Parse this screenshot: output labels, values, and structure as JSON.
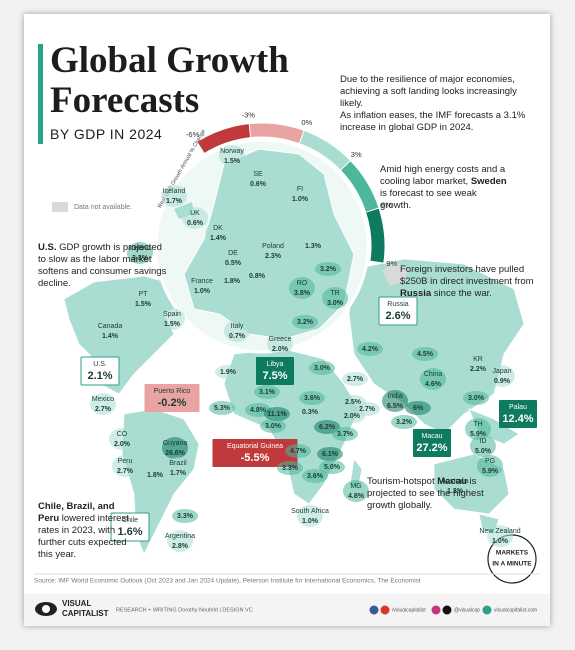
{
  "header": {
    "title_lines": [
      "Global Growth",
      "Forecasts"
    ],
    "subtitle": "BY GDP IN 2024"
  },
  "intro": [
    "Due to the resilience of major economies, achieving a soft landing looks increasingly likely.",
    "As inflation eases, the IMF forecasts a 3.1% increase in global GDP in 2024."
  ],
  "legend": {
    "label": "Real GDP Growth Annual % Change",
    "ticks": [
      {
        "value": -6,
        "label": "-6%"
      },
      {
        "value": -3,
        "label": "-3%"
      },
      {
        "value": 0,
        "label": "0%"
      },
      {
        "value": 3,
        "label": "3%"
      },
      {
        "value": 6,
        "label": "6%"
      },
      {
        "value": 9,
        "label": "9%"
      }
    ],
    "colors": [
      "#c0393b",
      "#e9a3a3",
      "#a9ddd1",
      "#4cb79b",
      "#0e7a60"
    ],
    "no_data": "Data not available."
  },
  "annotations": [
    {
      "before": "Amid high energy costs and a cooling labor market, ",
      "bold": "Sweden",
      "after": " is forecast to see weak growth."
    },
    {
      "bold": "U.S.",
      "after": " GDP growth is projected to slow as the labor market softens and consumer savings decline."
    },
    {
      "before": "Foreign investors have pulled $250B in direct investment from ",
      "bold": "Russia",
      "after": " since the war."
    },
    {
      "before": "Tourism-hotspot ",
      "bold": "Macau",
      "after": " is projected to see the highest growth globally."
    },
    {
      "bold": "Chile, Brazil, and Peru",
      "after": " lowered interest rates in 2023, with further cuts expected this year."
    }
  ],
  "countries": [
    {
      "name": "Norway",
      "value": 1.5,
      "value_label": "1.5%"
    },
    {
      "name": "Iceland",
      "value": 1.7,
      "value_label": "1.7%"
    },
    {
      "name": "SE",
      "value": 0.6,
      "value_label": "0.6%"
    },
    {
      "name": "FI",
      "value": 1.0,
      "value_label": "1.0%"
    },
    {
      "name": "UK",
      "value": 0.6,
      "value_label": "0.6%"
    },
    {
      "name": "DK",
      "value": 1.4,
      "value_label": "1.4%"
    },
    {
      "name": "Ireland",
      "value": 3.3,
      "value_label": "3.3%"
    },
    {
      "name": "DE",
      "value": 0.5,
      "value_label": "0.5%"
    },
    {
      "name": "Poland",
      "value": 2.3,
      "value_label": "2.3%"
    },
    {
      "name": null,
      "value": 1.3,
      "value_label": "1.3%"
    },
    {
      "name": "France",
      "value": 1.0,
      "value_label": "1.0%"
    },
    {
      "name": null,
      "value": 1.8,
      "value_label": "1.8%"
    },
    {
      "name": null,
      "value": 0.8,
      "value_label": "0.8%"
    },
    {
      "name": null,
      "value": 3.2,
      "value_label": "3.2%"
    },
    {
      "name": "RO",
      "value": 3.8,
      "value_label": "3.8%"
    },
    {
      "name": "PT",
      "value": 1.5,
      "value_label": "1.5%"
    },
    {
      "name": "Spain",
      "value": 1.5,
      "value_label": "1.5%"
    },
    {
      "name": null,
      "value": 3.2,
      "value_label": "3.2%"
    },
    {
      "name": "TR",
      "value": 3.0,
      "value_label": "3.0%"
    },
    {
      "name": "Italy",
      "value": 0.7,
      "value_label": "0.7%"
    },
    {
      "name": "Greece",
      "value": 2.0,
      "value_label": "2.0%"
    },
    {
      "name": "Russia",
      "value": 2.6,
      "value_label": "2.6%",
      "box": "outline"
    },
    {
      "name": "Canada",
      "value": 1.4,
      "value_label": "1.4%"
    },
    {
      "name": "U.S.",
      "value": 2.1,
      "value_label": "2.1%",
      "box": "outline"
    },
    {
      "name": "Mexico",
      "value": 2.7,
      "value_label": "2.7%"
    },
    {
      "name": "Puerto Rico",
      "value": -0.2,
      "value_label": "-0.2%",
      "box": "fill"
    },
    {
      "name": "Guyana",
      "value": 26.6,
      "value_label": "26.6%"
    },
    {
      "name": "CO",
      "value": 2.0,
      "value_label": "2.0%"
    },
    {
      "name": "Peru",
      "value": 2.7,
      "value_label": "2.7%"
    },
    {
      "name": "Brazil",
      "value": 1.7,
      "value_label": "1.7%"
    },
    {
      "name": null,
      "value": 1.8,
      "value_label": "1.8%"
    },
    {
      "name": "Chile",
      "value": 1.6,
      "value_label": "1.6%",
      "box": "outline"
    },
    {
      "name": null,
      "value": 3.3,
      "value_label": "3.3%"
    },
    {
      "name": "Argentina",
      "value": 2.8,
      "value_label": "2.8%"
    },
    {
      "name": "Libya",
      "value": 7.5,
      "value_label": "7.5%",
      "box": "fill"
    },
    {
      "name": null,
      "value": 1.9,
      "value_label": "1.9%"
    },
    {
      "name": null,
      "value": 5.3,
      "value_label": "5.3%"
    },
    {
      "name": null,
      "value": 3.1,
      "value_label": "3.1%"
    },
    {
      "name": null,
      "value": 4.8,
      "value_label": "4.8%"
    },
    {
      "name": null,
      "value": 11.1,
      "value_label": "11.1%"
    },
    {
      "name": null,
      "value": 3.0,
      "value_label": "3.0%"
    },
    {
      "name": null,
      "value": 3.6,
      "value_label": "3.6%"
    },
    {
      "name": null,
      "value": 0.3,
      "value_label": "0.3%"
    },
    {
      "name": "Equatorial Guinea",
      "value": -5.5,
      "value_label": "-5.5%",
      "box": "fill"
    },
    {
      "name": null,
      "value": 4.7,
      "value_label": "4.7%"
    },
    {
      "name": null,
      "value": 6.2,
      "value_label": "6.2%"
    },
    {
      "name": null,
      "value": 3.3,
      "value_label": "3.3%"
    },
    {
      "name": null,
      "value": 3.6,
      "value_label": "3.6%"
    },
    {
      "name": null,
      "value": 6.1,
      "value_label": "6.1%"
    },
    {
      "name": null,
      "value": 5.0,
      "value_label": "5.0%"
    },
    {
      "name": null,
      "value": 3.7,
      "value_label": "3.7%"
    },
    {
      "name": "MG",
      "value": 4.8,
      "value_label": "4.8%"
    },
    {
      "name": "South Africa",
      "value": 1.0,
      "value_label": "1.0%"
    },
    {
      "name": null,
      "value": 3.0,
      "value_label": "3.0%"
    },
    {
      "name": null,
      "value": 2.7,
      "value_label": "2.7%"
    },
    {
      "name": null,
      "value": 2.5,
      "value_label": "2.5%"
    },
    {
      "name": null,
      "value": 2.7,
      "value_label": "2.7%"
    },
    {
      "name": null,
      "value": 2.0,
      "value_label": "2.0%"
    },
    {
      "name": null,
      "value": 4.2,
      "value_label": "4.2%"
    },
    {
      "name": null,
      "value": 4.5,
      "value_label": "4.5%"
    },
    {
      "name": "China",
      "value": 4.6,
      "value_label": "4.6%"
    },
    {
      "name": "KR",
      "value": 2.2,
      "value_label": "2.2%"
    },
    {
      "name": "Japan",
      "value": 0.9,
      "value_label": "0.9%"
    },
    {
      "name": "India",
      "value": 6.5,
      "value_label": "6.5%"
    },
    {
      "name": null,
      "value": 6,
      "value_label": "6%"
    },
    {
      "name": "Macau",
      "value": 27.2,
      "value_label": "27.2%",
      "box": "fill"
    },
    {
      "name": null,
      "value": 3.2,
      "value_label": "3.2%"
    },
    {
      "name": null,
      "value": 3.0,
      "value_label": "3.0%"
    },
    {
      "name": "TH",
      "value": 5.9,
      "value_label": "5.9%"
    },
    {
      "name": "ID",
      "value": 5.0,
      "value_label": "5.0%"
    },
    {
      "name": "Palau",
      "value": 12.4,
      "value_label": "12.4%",
      "box": "fill"
    },
    {
      "name": "PG",
      "value": 5.9,
      "value_label": "5.9%"
    },
    {
      "name": "Australia",
      "value": 1.2,
      "value_label": "1.2%"
    },
    {
      "name": "New Zealand",
      "value": 1.0,
      "value_label": "1.0%"
    }
  ],
  "badge": "MARKETS IN A MINUTE",
  "source": "Source: IMF World Economic Outlook (Oct 2023 and Jan 2024 Update), Peterson Institute for International Economics, The Economist",
  "footer": {
    "logo": [
      "VISUAL",
      "CAPITALIST"
    ],
    "credits": "RESEARCH + WRITING Dorothy Neufeld | DESIGN VC",
    "social": [
      "/visualcapitalist",
      "@visualcap",
      "visualcapitalist.com"
    ]
  }
}
